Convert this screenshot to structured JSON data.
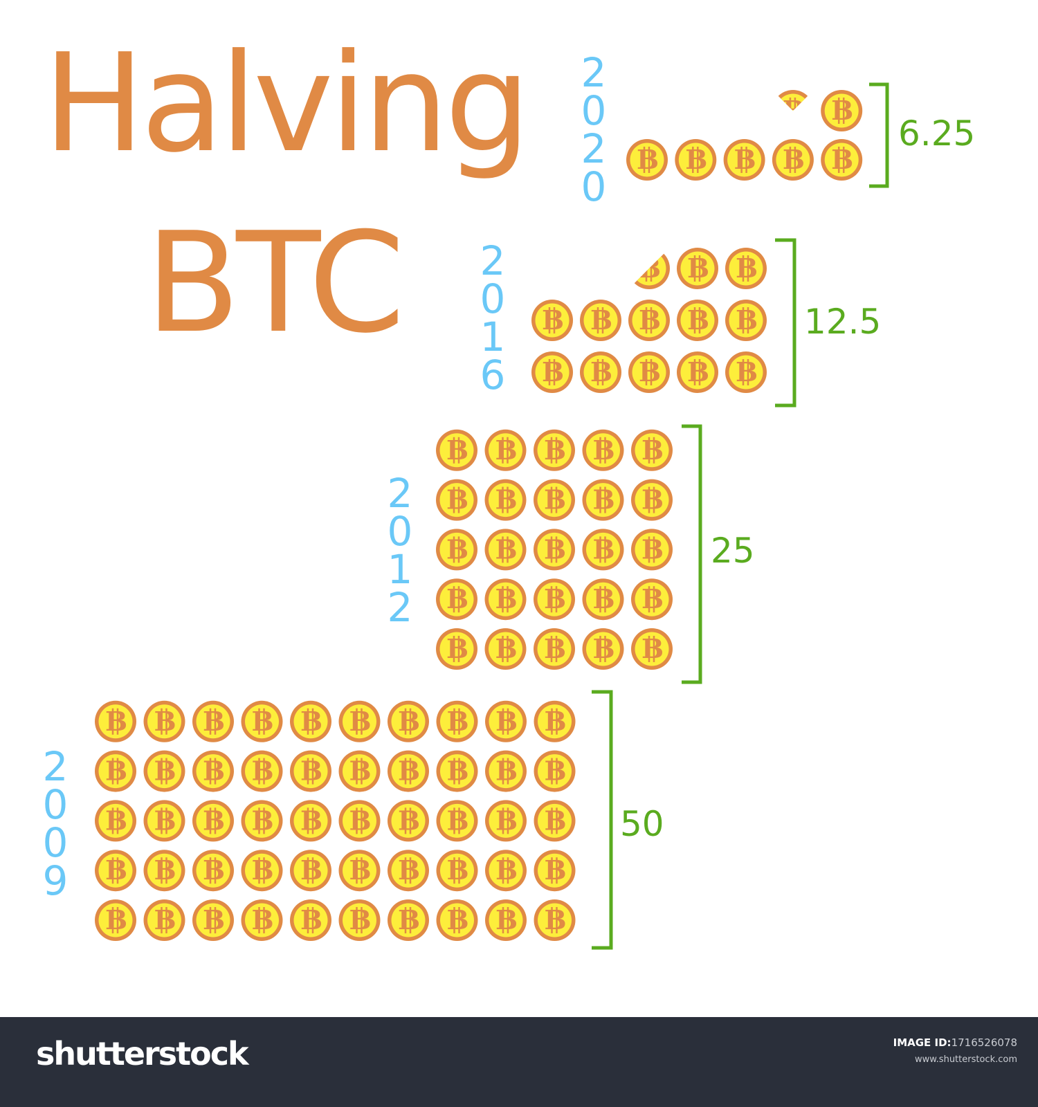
{
  "title": {
    "line1": "Halving",
    "line2": "BTC"
  },
  "colors": {
    "title": "#e08a45",
    "year": "#6ac8f7",
    "bracket": "#5aab1f",
    "coin_rim": "#e08a45",
    "coin_face": "#fdee3b",
    "footer": "#2a2f3a"
  },
  "chart_data": {
    "type": "pictogram",
    "unit": "1 coin = 1 BTC",
    "categories": [
      "2009",
      "2012",
      "2016",
      "2020"
    ],
    "values": [
      50,
      25,
      12.5,
      6.25
    ],
    "labels": [
      "50",
      "25",
      "12.5",
      "6.25"
    ],
    "icon": "bitcoin-coin-icon"
  },
  "footer": {
    "logo": "shutterstock",
    "image_id_label": "IMAGE ID:",
    "image_id": "1716526078",
    "site": "www.shutterstock.com"
  }
}
